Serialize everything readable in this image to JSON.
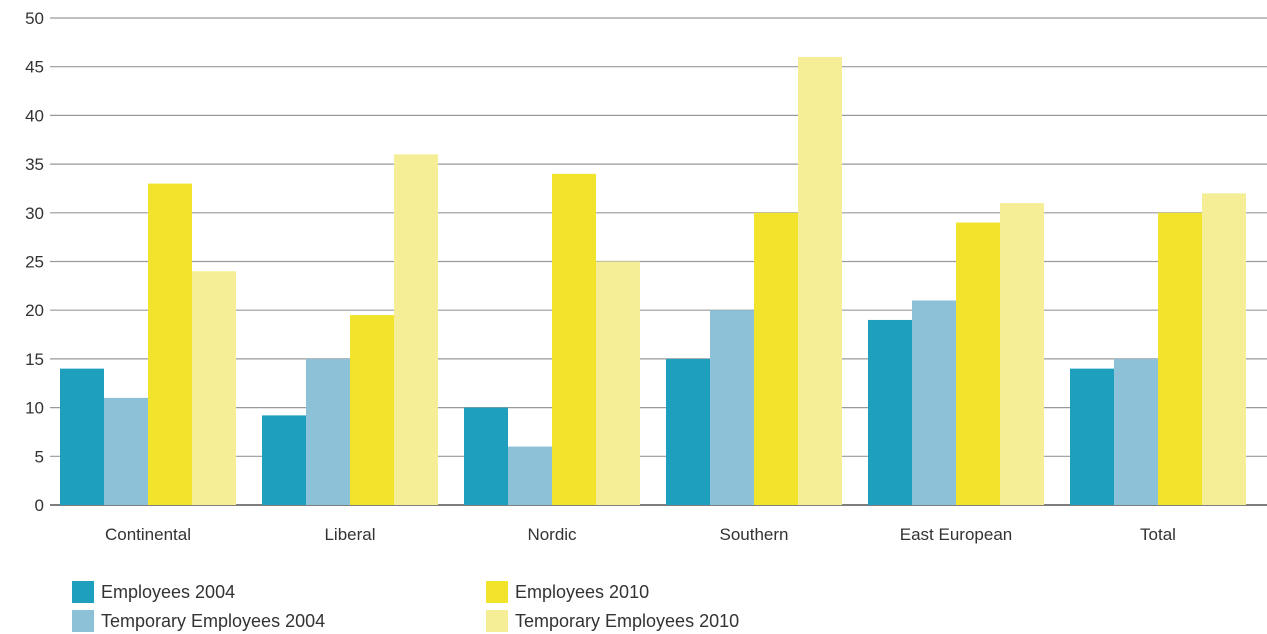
{
  "chart_data": {
    "type": "bar",
    "title": "",
    "xlabel": "",
    "ylabel": "",
    "ylim": [
      0,
      50
    ],
    "yticks": [
      0,
      5,
      10,
      15,
      20,
      25,
      30,
      35,
      40,
      45,
      50
    ],
    "grid": true,
    "legend_position": "bottom",
    "categories": [
      "Continental",
      "Liberal",
      "Nordic",
      "Southern",
      "East European",
      "Total"
    ],
    "series": [
      {
        "name": "Employees 2004",
        "color": "#1f9fbe",
        "values": [
          14,
          9.2,
          10,
          15,
          19,
          14
        ]
      },
      {
        "name": "Temporary Employees 2004",
        "color": "#8cc1d8",
        "values": [
          11,
          15,
          6,
          20,
          21,
          15
        ]
      },
      {
        "name": "Employees 2010",
        "color": "#f1e42a",
        "values": [
          33,
          19.5,
          34,
          30,
          29,
          30
        ]
      },
      {
        "name": "Temporary Employees 2010",
        "color": "#f5ee96",
        "values": [
          24,
          36,
          25,
          46,
          31,
          32
        ]
      }
    ]
  }
}
